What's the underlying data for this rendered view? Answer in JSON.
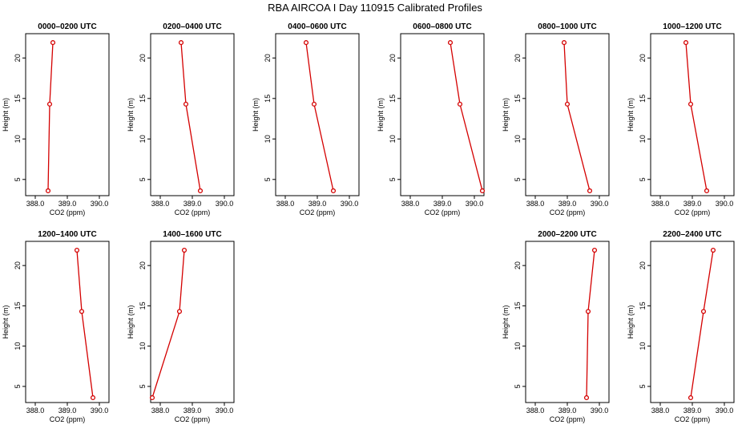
{
  "title": "RBA AIRCOA I  Day 110915  Calibrated Profiles",
  "colors": {
    "series": "#d40000",
    "axis": "#000000",
    "background": "#ffffff"
  },
  "chart_data": [
    {
      "type": "line",
      "title": "0000–0200 UTC",
      "xlabel": "CO2 (ppm)",
      "ylabel": "Height (m)",
      "xlim": [
        387.7,
        390.3
      ],
      "ylim": [
        3,
        23
      ],
      "x_ticks": [
        "388.0",
        "389.0",
        "390.0"
      ],
      "y_ticks": [
        "5",
        "10",
        "15",
        "20"
      ],
      "x": [
        388.4,
        388.45,
        388.55
      ],
      "y": [
        3.6,
        14.3,
        21.9
      ]
    },
    {
      "type": "line",
      "title": "0200–0400 UTC",
      "xlabel": "CO2 (ppm)",
      "ylabel": "Height (m)",
      "xlim": [
        387.7,
        390.3
      ],
      "ylim": [
        3,
        23
      ],
      "x_ticks": [
        "388.0",
        "389.0",
        "390.0"
      ],
      "y_ticks": [
        "5",
        "10",
        "15",
        "20"
      ],
      "x": [
        389.25,
        388.8,
        388.65
      ],
      "y": [
        3.6,
        14.3,
        21.9
      ]
    },
    {
      "type": "line",
      "title": "0400–0600 UTC",
      "xlabel": "CO2 (ppm)",
      "ylabel": "Height (m)",
      "xlim": [
        387.7,
        390.3
      ],
      "ylim": [
        3,
        23
      ],
      "x_ticks": [
        "388.0",
        "389.0",
        "390.0"
      ],
      "y_ticks": [
        "5",
        "10",
        "15",
        "20"
      ],
      "x": [
        389.5,
        388.9,
        388.65
      ],
      "y": [
        3.6,
        14.3,
        21.9
      ]
    },
    {
      "type": "line",
      "title": "0600–0800 UTC",
      "xlabel": "CO2 (ppm)",
      "ylabel": "Height (m)",
      "xlim": [
        387.7,
        390.3
      ],
      "ylim": [
        3,
        23
      ],
      "x_ticks": [
        "388.0",
        "389.0",
        "390.0"
      ],
      "y_ticks": [
        "5",
        "10",
        "15",
        "20"
      ],
      "x": [
        390.25,
        389.55,
        389.25
      ],
      "y": [
        3.6,
        14.3,
        21.9
      ]
    },
    {
      "type": "line",
      "title": "0800–1000 UTC",
      "xlabel": "CO2 (ppm)",
      "ylabel": "Height (m)",
      "xlim": [
        387.7,
        390.3
      ],
      "ylim": [
        3,
        23
      ],
      "x_ticks": [
        "388.0",
        "389.0",
        "390.0"
      ],
      "y_ticks": [
        "5",
        "10",
        "15",
        "20"
      ],
      "x": [
        389.7,
        389.0,
        388.9
      ],
      "y": [
        3.6,
        14.3,
        21.9
      ]
    },
    {
      "type": "line",
      "title": "1000–1200 UTC",
      "xlabel": "CO2 (ppm)",
      "ylabel": "Height (m)",
      "xlim": [
        387.7,
        390.3
      ],
      "ylim": [
        3,
        23
      ],
      "x_ticks": [
        "388.0",
        "389.0",
        "390.0"
      ],
      "y_ticks": [
        "5",
        "10",
        "15",
        "20"
      ],
      "x": [
        389.45,
        388.95,
        388.8
      ],
      "y": [
        3.6,
        14.3,
        21.9
      ]
    },
    {
      "type": "line",
      "title": "1200–1400 UTC",
      "xlabel": "CO2 (ppm)",
      "ylabel": "Height (m)",
      "xlim": [
        387.7,
        390.3
      ],
      "ylim": [
        3,
        23
      ],
      "x_ticks": [
        "388.0",
        "389.0",
        "390.0"
      ],
      "y_ticks": [
        "5",
        "10",
        "15",
        "20"
      ],
      "x": [
        389.8,
        389.45,
        389.3
      ],
      "y": [
        3.6,
        14.3,
        21.9
      ]
    },
    {
      "type": "line",
      "title": "1400–1600 UTC",
      "xlabel": "CO2 (ppm)",
      "ylabel": "Height (m)",
      "xlim": [
        387.7,
        390.3
      ],
      "ylim": [
        3,
        23
      ],
      "x_ticks": [
        "388.0",
        "389.0",
        "390.0"
      ],
      "y_ticks": [
        "5",
        "10",
        "15",
        "20"
      ],
      "x": [
        387.75,
        388.6,
        388.75
      ],
      "y": [
        3.6,
        14.3,
        21.9
      ]
    },
    null,
    null,
    {
      "type": "line",
      "title": "2000–2200 UTC",
      "xlabel": "CO2 (ppm)",
      "ylabel": "Height (m)",
      "xlim": [
        387.7,
        390.3
      ],
      "ylim": [
        3,
        23
      ],
      "x_ticks": [
        "388.0",
        "389.0",
        "390.0"
      ],
      "y_ticks": [
        "5",
        "10",
        "15",
        "20"
      ],
      "x": [
        389.6,
        389.65,
        389.85
      ],
      "y": [
        3.6,
        14.3,
        21.9
      ]
    },
    {
      "type": "line",
      "title": "2200–2400 UTC",
      "xlabel": "CO2 (ppm)",
      "ylabel": "Height (m)",
      "xlim": [
        387.7,
        390.3
      ],
      "ylim": [
        3,
        23
      ],
      "x_ticks": [
        "388.0",
        "389.0",
        "390.0"
      ],
      "y_ticks": [
        "5",
        "10",
        "15",
        "20"
      ],
      "x": [
        388.95,
        389.35,
        389.65
      ],
      "y": [
        3.6,
        14.3,
        21.9
      ]
    }
  ]
}
